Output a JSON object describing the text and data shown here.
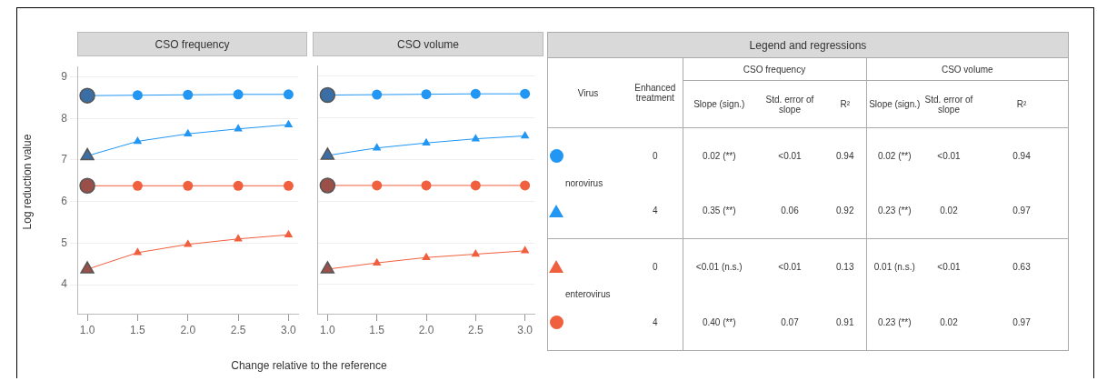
{
  "chart_data": [
    {
      "type": "line",
      "title": "CSO frequency",
      "xlabel": "Change relative to the reference",
      "ylabel": "Log reduction value",
      "x": [
        1,
        1.5,
        2,
        2.5,
        3
      ],
      "xlim": [
        0.9,
        3.1
      ],
      "ylim": [
        3.3,
        9.25
      ],
      "xticks": [
        {
          "value": 1,
          "label": "1.0"
        },
        {
          "value": 1.5,
          "label": "1.5"
        },
        {
          "value": 2,
          "label": "2.0"
        },
        {
          "value": 2.5,
          "label": "2.5"
        },
        {
          "value": 3,
          "label": "3.0"
        }
      ],
      "yticks": [
        4,
        5,
        6,
        7,
        8,
        9
      ],
      "grid": "y",
      "legend": false,
      "series": [
        {
          "color": "#2196f3",
          "colors": [
            "#3a6ea5",
            "#2196f3",
            "#2196f3",
            "#2196f3",
            "#2196f3"
          ],
          "marker": "circle",
          "values": [
            8.55,
            8.56,
            8.57,
            8.58,
            8.58
          ]
        },
        {
          "color": "#2196f3",
          "colors": [
            "#3a6ea5",
            "#2196f3",
            "#2196f3",
            "#2196f3",
            "#2196f3"
          ],
          "marker": "triangle",
          "values": [
            7.1,
            7.45,
            7.63,
            7.75,
            7.85
          ]
        },
        {
          "color": "#f0603f",
          "colors": [
            "#9a5048",
            "#f0603f",
            "#f0603f",
            "#f0603f",
            "#f0603f"
          ],
          "marker": "circle",
          "values": [
            6.38,
            6.38,
            6.38,
            6.38,
            6.38
          ]
        },
        {
          "color": "#f0603f",
          "colors": [
            "#9a5048",
            "#f0603f",
            "#f0603f",
            "#f0603f",
            "#f0603f"
          ],
          "marker": "triangle",
          "values": [
            4.37,
            4.77,
            4.97,
            5.1,
            5.2
          ]
        }
      ]
    },
    {
      "type": "line",
      "title": "CSO volume",
      "x": [
        1,
        1.5,
        2,
        2.5,
        3
      ],
      "xlim": [
        0.9,
        3.1
      ],
      "ylim": [
        3.3,
        9.25
      ],
      "xticks": [
        {
          "value": 1,
          "label": "1.0"
        },
        {
          "value": 1.5,
          "label": "1.5"
        },
        {
          "value": 2,
          "label": "2.0"
        },
        {
          "value": 2.5,
          "label": "2.5"
        },
        {
          "value": 3,
          "label": "3.0"
        }
      ],
      "yticks": [
        4,
        5,
        6,
        7,
        8,
        9
      ],
      "tick_labels": "x",
      "grid": "y",
      "legend": false,
      "series": [
        {
          "color": "#2196f3",
          "colors": [
            "#3a6ea5",
            "#2196f3",
            "#2196f3",
            "#2196f3",
            "#2196f3"
          ],
          "marker": "circle",
          "values": [
            8.55,
            8.56,
            8.57,
            8.58,
            8.58
          ]
        },
        {
          "color": "#2196f3",
          "colors": [
            "#3a6ea5",
            "#2196f3",
            "#2196f3",
            "#2196f3",
            "#2196f3"
          ],
          "marker": "triangle",
          "values": [
            7.1,
            7.28,
            7.4,
            7.5,
            7.57
          ]
        },
        {
          "color": "#f0603f",
          "colors": [
            "#9a5048",
            "#f0603f",
            "#f0603f",
            "#f0603f",
            "#f0603f"
          ],
          "marker": "circle",
          "values": [
            6.38,
            6.38,
            6.38,
            6.38,
            6.38
          ]
        },
        {
          "color": "#f0603f",
          "colors": [
            "#9a5048",
            "#f0603f",
            "#f0603f",
            "#f0603f",
            "#f0603f"
          ],
          "marker": "triangle",
          "values": [
            4.37,
            4.52,
            4.65,
            4.73,
            4.81
          ]
        }
      ]
    },
    {
      "type": "other",
      "title": "Legend and regressions",
      "annotations": [
        "Virus",
        "Enhanced treatment",
        "CSO frequency",
        "CSO volume",
        "Slope (sign.)",
        "Std. error of slope",
        "R²",
        "Slope (sign.)",
        "Std. error of slope",
        "R²",
        "norovirus",
        "0",
        "0.02 (**)",
        "<0.01",
        "0.94",
        "0.02 (**)",
        "<0.01",
        "0.94",
        "4",
        "0.35 (**)",
        "0.06",
        "0.92",
        "0.23 (**)",
        "0.02",
        "0.97",
        "enterovirus",
        "0",
        "<0.01 (n.s.)",
        "<0.01",
        "0.13",
        "0.01 (n.s.)",
        "<0.01",
        "0.63",
        "4",
        "0.40 (**)",
        "0.07",
        "0.91",
        "0.23 (**)",
        "0.02",
        "0.97"
      ]
    }
  ]
}
